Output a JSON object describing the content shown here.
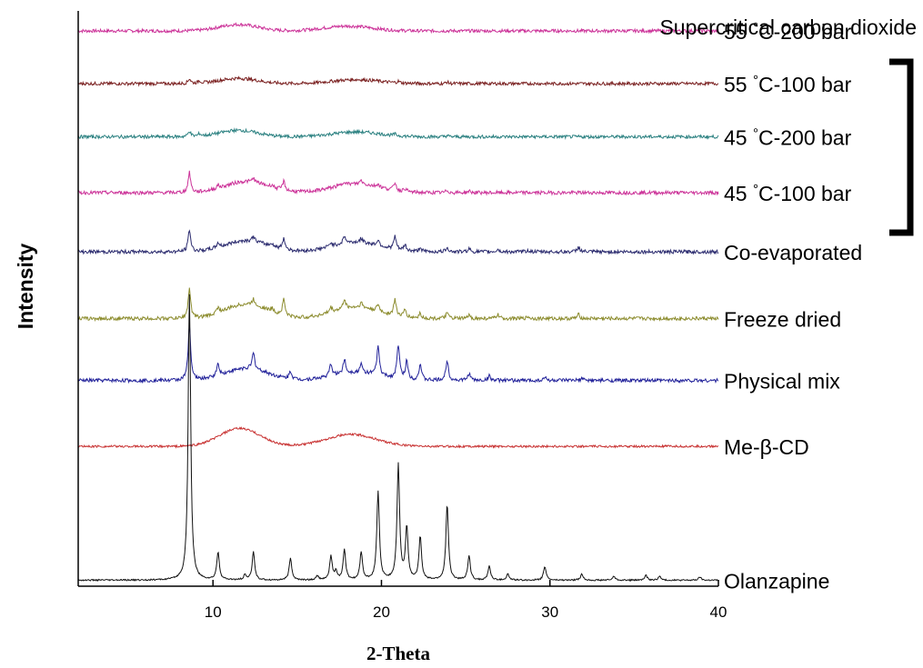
{
  "chart_data": {
    "type": "line",
    "title": "",
    "xlabel": "2-Theta",
    "ylabel": "Intensity",
    "xlim": [
      2,
      40
    ],
    "x_ticks": [
      10,
      20,
      30,
      40
    ],
    "grid": false,
    "y_axis_numbered": false,
    "group_label": "Supercritical carbon dioxide",
    "group_members": [
      "55 °C-200 bar",
      "55 °C-100 bar",
      "45 °C-200 bar",
      "45 °C-100 bar"
    ],
    "series": [
      {
        "name": "55 °C-200 bar",
        "color": "#cc3399",
        "baseline": 0.84,
        "scale": 0.009,
        "broad": [
          [
            11.5,
            0.016,
            1.6
          ],
          [
            18.0,
            0.012,
            2.0
          ]
        ],
        "peaks": []
      },
      {
        "name": "55 °C-100 bar",
        "color": "#7a2020",
        "baseline": 0.708,
        "scale": 0.009,
        "broad": [
          [
            11.5,
            0.013,
            1.6
          ],
          [
            18.5,
            0.01,
            2.0
          ]
        ],
        "peaks": [
          [
            8.6,
            0.012
          ],
          [
            9.2,
            0.006
          ],
          [
            21.0,
            0.004
          ],
          [
            23.9,
            0.004
          ]
        ]
      },
      {
        "name": "45 °C-200 bar",
        "color": "#2a8080",
        "baseline": 0.575,
        "scale": 0.009,
        "broad": [
          [
            11.5,
            0.016,
            1.6
          ],
          [
            18.5,
            0.012,
            2.0
          ]
        ],
        "peaks": [
          [
            8.6,
            0.014
          ],
          [
            9.2,
            0.006
          ],
          [
            20.8,
            0.004
          ],
          [
            23.9,
            0.003
          ]
        ]
      },
      {
        "name": "45 °C-100 bar",
        "color": "#cc3399",
        "baseline": 0.435,
        "scale": 0.01,
        "broad": [
          [
            12.0,
            0.028,
            1.8
          ],
          [
            18.5,
            0.022,
            2.0
          ]
        ],
        "peaks": [
          [
            8.6,
            0.05
          ],
          [
            10.3,
            0.008
          ],
          [
            12.4,
            0.01
          ],
          [
            13.5,
            0.006
          ],
          [
            14.2,
            0.022
          ],
          [
            17.8,
            0.01
          ],
          [
            18.8,
            0.01
          ],
          [
            19.8,
            0.008
          ],
          [
            20.8,
            0.02
          ],
          [
            21.4,
            0.008
          ],
          [
            23.9,
            0.006
          ],
          [
            25.2,
            0.004
          ]
        ]
      },
      {
        "name": "Co-evaporated",
        "color": "#2a2a6e",
        "baseline": 0.287,
        "scale": 0.01,
        "broad": [
          [
            12.0,
            0.028,
            1.8
          ],
          [
            18.5,
            0.024,
            2.0
          ]
        ],
        "peaks": [
          [
            8.6,
            0.055
          ],
          [
            10.3,
            0.012
          ],
          [
            12.4,
            0.012
          ],
          [
            13.5,
            0.008
          ],
          [
            14.2,
            0.028
          ],
          [
            17.0,
            0.01
          ],
          [
            17.8,
            0.018
          ],
          [
            18.8,
            0.01
          ],
          [
            19.8,
            0.014
          ],
          [
            20.8,
            0.032
          ],
          [
            21.4,
            0.014
          ],
          [
            22.3,
            0.01
          ],
          [
            23.9,
            0.012
          ],
          [
            25.2,
            0.008
          ],
          [
            26.9,
            0.006
          ],
          [
            28.7,
            0.004
          ],
          [
            31.7,
            0.012
          ]
        ]
      },
      {
        "name": "Freeze dried",
        "color": "#8c8c2e",
        "baseline": 0.12,
        "scale": 0.01,
        "broad": [
          [
            12.0,
            0.036,
            1.8
          ],
          [
            18.5,
            0.028,
            2.0
          ]
        ],
        "peaks": [
          [
            8.6,
            0.075
          ],
          [
            10.3,
            0.014
          ],
          [
            12.4,
            0.014
          ],
          [
            13.5,
            0.008
          ],
          [
            14.2,
            0.04
          ],
          [
            17.0,
            0.012
          ],
          [
            17.8,
            0.024
          ],
          [
            18.8,
            0.012
          ],
          [
            19.8,
            0.016
          ],
          [
            20.8,
            0.04
          ],
          [
            21.4,
            0.018
          ],
          [
            22.3,
            0.012
          ],
          [
            23.9,
            0.014
          ],
          [
            25.2,
            0.008
          ],
          [
            26.9,
            0.01
          ],
          [
            28.7,
            0.005
          ],
          [
            31.7,
            0.01
          ]
        ]
      },
      {
        "name": "Physical mix",
        "color": "#22229a",
        "baseline": -0.035,
        "scale": 0.01,
        "broad": [
          [
            12.0,
            0.03,
            1.8
          ],
          [
            18.5,
            0.02,
            2.0
          ]
        ],
        "peaks": [
          [
            8.6,
            0.14
          ],
          [
            10.3,
            0.03
          ],
          [
            12.4,
            0.04
          ],
          [
            14.6,
            0.02
          ],
          [
            17.0,
            0.03
          ],
          [
            17.8,
            0.035
          ],
          [
            18.8,
            0.02
          ],
          [
            19.8,
            0.07
          ],
          [
            21.0,
            0.085
          ],
          [
            21.5,
            0.045
          ],
          [
            22.3,
            0.04
          ],
          [
            23.9,
            0.05
          ],
          [
            25.2,
            0.018
          ],
          [
            26.4,
            0.012
          ],
          [
            29.7,
            0.008
          ],
          [
            31.9,
            0.005
          ]
        ]
      },
      {
        "name": "Me-β-CD",
        "color": "#c83232",
        "baseline": -0.2,
        "scale": 0.006,
        "broad": [
          [
            11.6,
            0.045,
            1.7
          ],
          [
            18.2,
            0.03,
            2.1
          ]
        ],
        "peaks": []
      },
      {
        "name": "Olanzapine",
        "color": "#111111",
        "baseline": -0.535,
        "scale": 0.004,
        "broad": [],
        "peaks": [
          [
            8.6,
            0.715
          ],
          [
            10.3,
            0.07
          ],
          [
            11.9,
            0.012
          ],
          [
            12.4,
            0.07
          ],
          [
            14.6,
            0.055
          ],
          [
            16.2,
            0.01
          ],
          [
            17.0,
            0.06
          ],
          [
            17.3,
            0.02
          ],
          [
            17.8,
            0.075
          ],
          [
            18.8,
            0.07
          ],
          [
            19.8,
            0.22
          ],
          [
            21.0,
            0.29
          ],
          [
            21.5,
            0.13
          ],
          [
            22.3,
            0.11
          ],
          [
            23.9,
            0.19
          ],
          [
            25.2,
            0.06
          ],
          [
            26.4,
            0.035
          ],
          [
            27.5,
            0.015
          ],
          [
            29.7,
            0.035
          ],
          [
            31.9,
            0.015
          ],
          [
            33.8,
            0.01
          ],
          [
            35.7,
            0.012
          ],
          [
            36.5,
            0.01
          ],
          [
            38.9,
            0.008
          ]
        ]
      }
    ]
  }
}
